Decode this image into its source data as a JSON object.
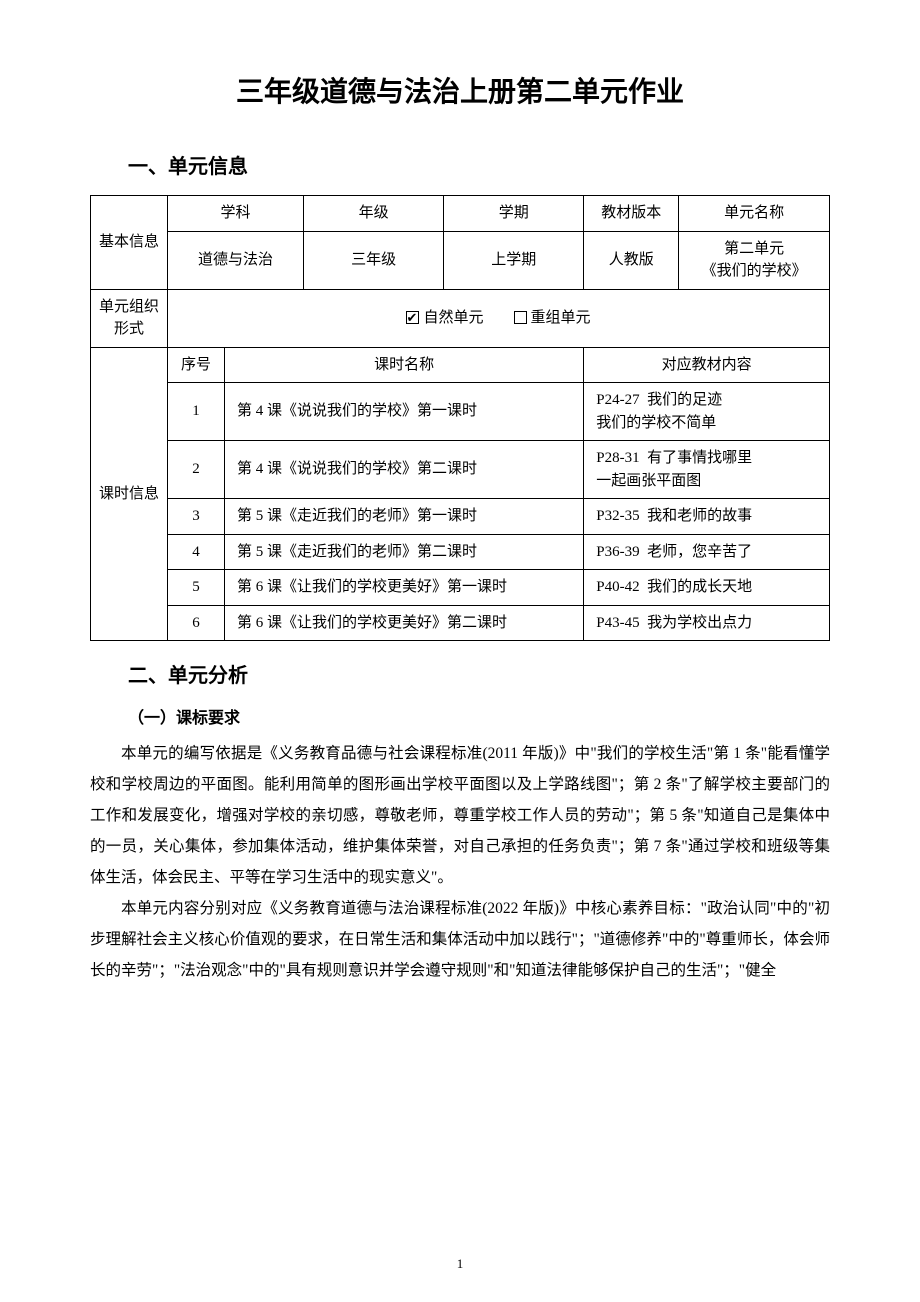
{
  "title": "三年级道德与法治上册第二单元作业",
  "section1": {
    "heading": "一、单元信息"
  },
  "basic": {
    "rowLabel": "基本信息",
    "headers": {
      "subject": "学科",
      "grade": "年级",
      "semester": "学期",
      "edition": "教材版本",
      "unitName": "单元名称"
    },
    "values": {
      "subject": "道德与法治",
      "grade": "三年级",
      "semester": "上学期",
      "edition": "人教版",
      "unitName": "第二单元\n《我们的学校》"
    }
  },
  "orgForm": {
    "rowLabel": "单元组织形式",
    "natural": {
      "checked": true,
      "label": "自然单元"
    },
    "recomb": {
      "checked": false,
      "label": "重组单元"
    }
  },
  "lessons": {
    "rowLabel": "课时信息",
    "headers": {
      "seq": "序号",
      "name": "课时名称",
      "content": "对应教材内容"
    },
    "rows": [
      {
        "seq": "1",
        "name": "第 4 课《说说我们的学校》第一课时",
        "pages": "P24-27",
        "content": "我们的足迹\n我们的学校不简单"
      },
      {
        "seq": "2",
        "name": "第 4 课《说说我们的学校》第二课时",
        "pages": "P28-31",
        "content": "有了事情找哪里\n一起画张平面图"
      },
      {
        "seq": "3",
        "name": "第 5 课《走近我们的老师》第一课时",
        "pages": "P32-35",
        "content": "我和老师的故事"
      },
      {
        "seq": "4",
        "name": "第 5 课《走近我们的老师》第二课时",
        "pages": "P36-39",
        "content": "老师，您辛苦了"
      },
      {
        "seq": "5",
        "name": "第 6 课《让我们的学校更美好》第一课时",
        "pages": "P40-42",
        "content": "我们的成长天地"
      },
      {
        "seq": "6",
        "name": "第 6 课《让我们的学校更美好》第二课时",
        "pages": "P43-45",
        "content": "我为学校出点力"
      }
    ]
  },
  "section2": {
    "heading": "二、单元分析"
  },
  "sub1": {
    "heading": "（一）课标要求"
  },
  "para1": "本单元的编写依据是《义务教育品德与社会课程标准(2011 年版)》中\"我们的学校生活\"第 1 条\"能看懂学校和学校周边的平面图。能利用简单的图形画出学校平面图以及上学路线图\"；第 2 条\"了解学校主要部门的工作和发展变化，增强对学校的亲切感，尊敬老师，尊重学校工作人员的劳动\"；第 5 条\"知道自己是集体中的一员，关心集体，参加集体活动，维护集体荣誉，对自己承担的任务负责\"；第 7 条\"通过学校和班级等集体生活，体会民主、平等在学习生活中的现实意义\"。",
  "para2": "本单元内容分别对应《义务教育道德与法治课程标准(2022 年版)》中核心素养目标：\"政治认同\"中的\"初步理解社会主义核心价值观的要求，在日常生活和集体活动中加以践行\"；\"道德修养\"中的\"尊重师长，体会师长的辛劳\"；\"法治观念\"中的\"具有规则意识并学会遵守规则\"和\"知道法律能够保护自己的生活\"；\"健全",
  "pageNum": "1",
  "style": {
    "pageWidth": 920,
    "pageHeight": 1302,
    "bodyFontSize": 15.5,
    "bodyLineHeight": 2.0,
    "titleFontSize": 28,
    "sectionFontSize": 20,
    "subsectionFontSize": 16,
    "tableFontSize": 15,
    "tableBorderColor": "#000000",
    "background": "#ffffff",
    "textColor": "#000000",
    "titleFont": "SimHei",
    "bodyFont": "SimSun"
  }
}
